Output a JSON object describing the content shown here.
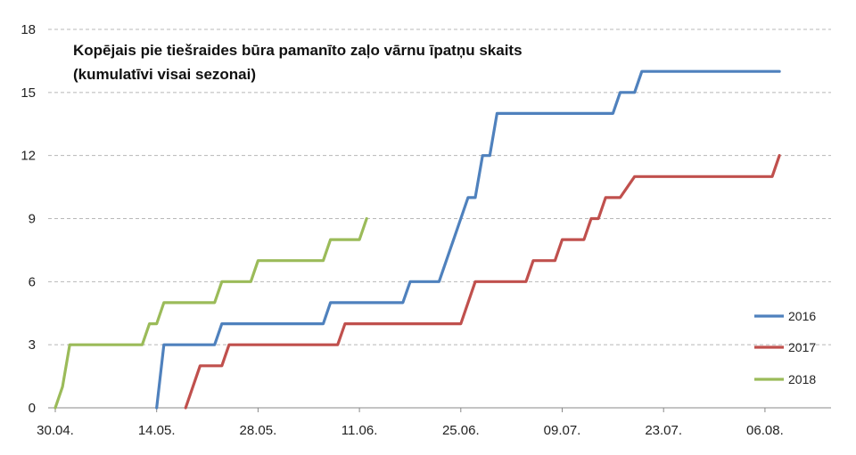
{
  "chart_data": {
    "type": "line",
    "title_lines": [
      "Kopējais pie tiešraides būra pamanīto zaļo vārnu īpatņu skaits",
      "(kumulatīvi visai sezonai)"
    ],
    "xlabel": "",
    "ylabel": "",
    "x_tick_labels": [
      "30.04.",
      "14.05.",
      "28.05.",
      "11.06.",
      "25.06.",
      "09.07.",
      "23.07.",
      "06.08."
    ],
    "y_tick_labels": [
      "0",
      "3",
      "6",
      "9",
      "12",
      "15",
      "18"
    ],
    "xlim": [
      "30.04.",
      "20.08."
    ],
    "ylim": [
      0,
      18
    ],
    "grid": "horizontal dashed",
    "legend_position": "right",
    "series": [
      {
        "name": "2016",
        "color": "#4f81bd",
        "x": [
          "14.05.",
          "14.05.",
          "15.05.",
          "22.05.",
          "23.05.",
          "06.06.",
          "07.06.",
          "17.06.",
          "18.06.",
          "22.06.",
          "25.06.",
          "26.06.",
          "27.06.",
          "28.06.",
          "29.06.",
          "30.06.",
          "02.07.",
          "16.07.",
          "17.07.",
          "19.07.",
          "20.07.",
          "08.08."
        ],
        "y": [
          0,
          0,
          3,
          3,
          4,
          4,
          5,
          5,
          6,
          6,
          9,
          10,
          10,
          12,
          12,
          14,
          14,
          14,
          15,
          15,
          16,
          16
        ]
      },
      {
        "name": "2017",
        "color": "#c0504d",
        "x": [
          "18.05.",
          "20.05.",
          "23.05.",
          "24.05.",
          "25.05.",
          "08.06.",
          "09.06.",
          "25.06.",
          "27.06.",
          "04.07.",
          "05.07.",
          "08.07.",
          "09.07.",
          "12.07.",
          "13.07.",
          "14.07.",
          "15.07.",
          "16.07.",
          "17.07.",
          "19.07.",
          "20.07.",
          "07.08.",
          "08.08."
        ],
        "y": [
          0,
          2,
          2,
          3,
          3,
          3,
          4,
          4,
          6,
          6,
          7,
          7,
          8,
          8,
          9,
          9,
          10,
          10,
          10,
          11,
          11,
          11,
          12
        ]
      },
      {
        "name": "2018",
        "color": "#9bbb59",
        "x": [
          "30.04.",
          "01.05.",
          "02.05.",
          "12.05.",
          "13.05.",
          "14.05.",
          "15.05.",
          "22.05.",
          "23.05.",
          "27.05.",
          "28.05.",
          "06.06.",
          "07.06.",
          "11.06.",
          "12.06."
        ],
        "y": [
          0,
          1,
          3,
          3,
          4,
          4,
          5,
          5,
          6,
          6,
          7,
          7,
          8,
          8,
          9
        ]
      }
    ]
  }
}
